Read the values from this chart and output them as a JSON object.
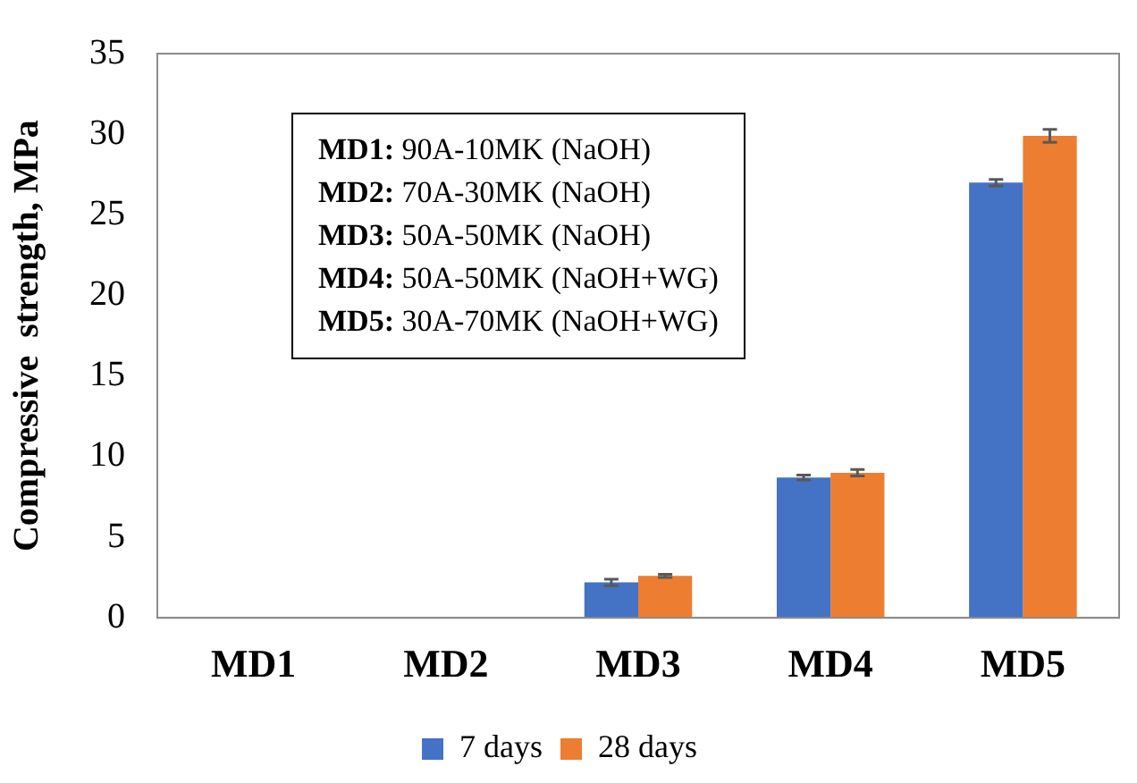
{
  "chart_data": {
    "type": "bar",
    "ylabel": "Compressive  strength, MPa",
    "categories": [
      "MD1",
      "MD2",
      "MD3",
      "MD4",
      "MD5"
    ],
    "series": [
      {
        "name": "7 days",
        "color": "#4472c4",
        "values": [
          0,
          0,
          2.2,
          8.7,
          27.0
        ],
        "errors": [
          null,
          null,
          0.2,
          0.15,
          0.2
        ]
      },
      {
        "name": "28 days",
        "color": "#ed7d31",
        "values": [
          0,
          0,
          2.6,
          9.0,
          29.9
        ],
        "errors": [
          null,
          null,
          0.1,
          0.2,
          0.4
        ]
      }
    ],
    "ylim": [
      0,
      35
    ],
    "yticks": [
      0,
      5,
      10,
      15,
      20,
      25,
      30,
      35
    ],
    "grid": false,
    "legend": "bottom",
    "annotations": [
      "MD1: 90A-10MK (NaOH)",
      "MD2: 70A-30MK (NaOH)",
      "MD3: 50A-50MK (NaOH)",
      "MD4: 50A-50MK (NaOH+WG)",
      "MD5: 30A-70MK (NaOH+WG)"
    ]
  }
}
